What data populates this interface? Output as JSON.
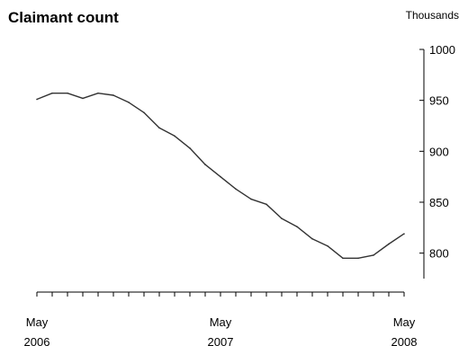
{
  "chart_data": {
    "type": "line",
    "title": "Claimant count",
    "ylabel": "Thousands",
    "xlabel": "",
    "ylim": [
      775,
      1000
    ],
    "yticks": [
      800,
      850,
      900,
      950,
      1000
    ],
    "x_tick_labels": [
      {
        "month_index": 0,
        "line1": "May",
        "line2": "2006"
      },
      {
        "month_index": 12,
        "line1": "May",
        "line2": "2007"
      },
      {
        "month_index": 24,
        "line1": "May",
        "line2": "2008"
      }
    ],
    "x": [
      "2006-05",
      "2006-06",
      "2006-07",
      "2006-08",
      "2006-09",
      "2006-10",
      "2006-11",
      "2006-12",
      "2007-01",
      "2007-02",
      "2007-03",
      "2007-04",
      "2007-05",
      "2007-06",
      "2007-07",
      "2007-08",
      "2007-09",
      "2007-10",
      "2007-11",
      "2007-12",
      "2008-01",
      "2008-02",
      "2008-03",
      "2008-04",
      "2008-05"
    ],
    "values": [
      951,
      957,
      957,
      952,
      957,
      955,
      948,
      938,
      923,
      915,
      903,
      887,
      875,
      863,
      853,
      848,
      834,
      826,
      814,
      807,
      795,
      795,
      798,
      809,
      819
    ],
    "axis_position": "right",
    "grid": false,
    "line_color": "#333333"
  }
}
